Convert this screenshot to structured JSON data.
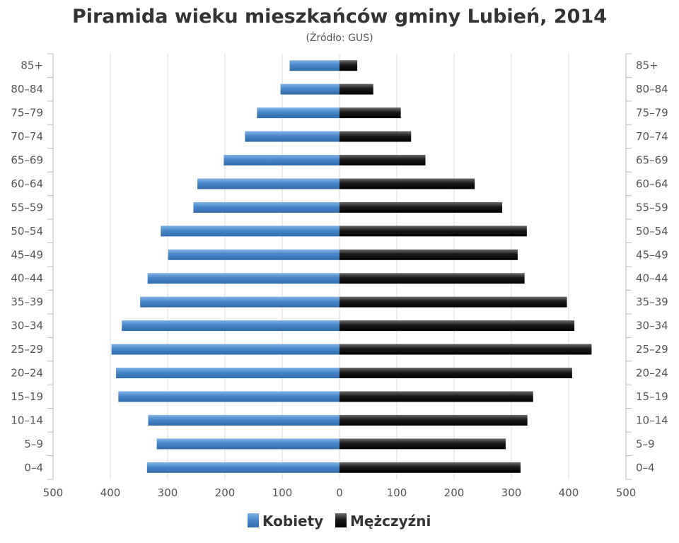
{
  "chart_data": {
    "type": "bar",
    "orientation": "horizontal-pyramid",
    "title": "Piramida wieku mieszkańców gminy Lubień, 2014",
    "subtitle": "(Źródło: GUS)",
    "categories": [
      "85+",
      "80–84",
      "75–79",
      "70–74",
      "65–69",
      "60–64",
      "55–59",
      "50–54",
      "45–49",
      "40–44",
      "35–39",
      "30–34",
      "25–29",
      "20–24",
      "15–19",
      "10–14",
      "5–9",
      "0–4"
    ],
    "series": [
      {
        "name": "Kobiety",
        "side": "left",
        "color": "#4a87c9",
        "values": [
          87,
          103,
          144,
          165,
          202,
          248,
          255,
          312,
          299,
          335,
          348,
          380,
          398,
          390,
          386,
          334,
          319,
          336
        ]
      },
      {
        "name": "Mężczyźni",
        "side": "right",
        "color": "#1a1a1a",
        "values": [
          31,
          59,
          107,
          125,
          150,
          236,
          284,
          327,
          311,
          323,
          397,
          410,
          440,
          406,
          338,
          328,
          290,
          316
        ]
      }
    ],
    "x_ticks": [
      "500",
      "400",
      "300",
      "200",
      "100",
      "0",
      "100",
      "200",
      "300",
      "400",
      "500"
    ],
    "xlim": [
      -500,
      500
    ],
    "grid": true,
    "legend": "bottom-center"
  }
}
